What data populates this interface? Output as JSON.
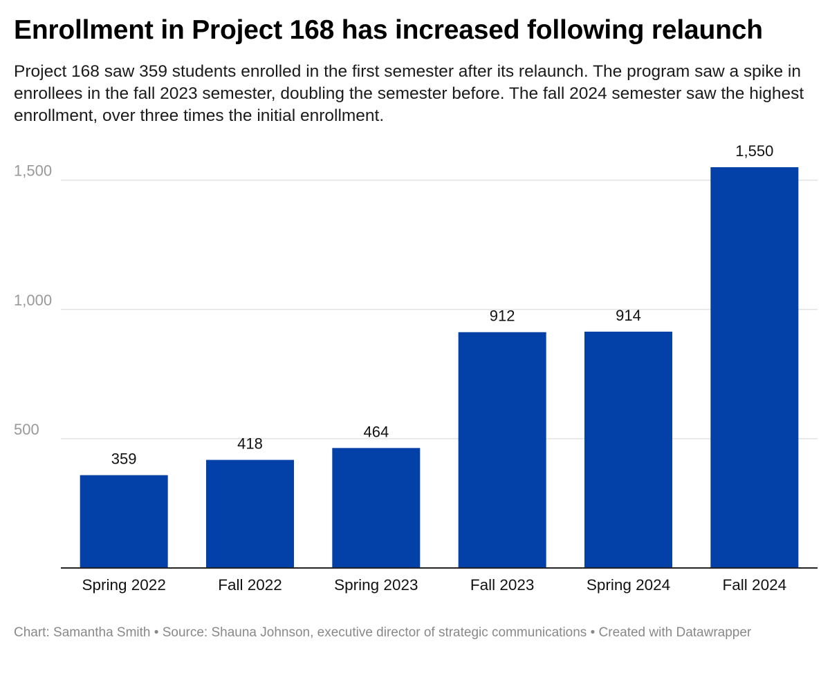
{
  "header": {
    "title": "Enrollment in Project 168 has increased following relaunch",
    "subtitle": "Project 168 saw 359 students enrolled in the first semester after its relaunch. The program saw a spike in enrollees in the fall 2023 semester, doubling the semester before. The fall 2024 semester saw the highest enrollment, over three times the initial enrollment."
  },
  "footer": {
    "credit": "Chart: Samantha Smith",
    "separator": "•",
    "source": "Source: Shauna Johnson, executive director of strategic communications",
    "created": "Created with Datawrapper"
  },
  "colors": {
    "bar": "#0340a8",
    "grid": "#e2e2e2",
    "axis": "#222222",
    "tick_label": "#999999",
    "value_label": "#111111",
    "category_label": "#111111"
  },
  "chart_data": {
    "type": "bar",
    "title": "Enrollment in Project 168 has increased following relaunch",
    "xlabel": "",
    "ylabel": "",
    "categories": [
      "Spring 2022",
      "Fall 2022",
      "Spring 2023",
      "Fall 2023",
      "Spring 2024",
      "Fall 2024"
    ],
    "values": [
      359,
      418,
      464,
      912,
      914,
      1550
    ],
    "value_labels": [
      "359",
      "418",
      "464",
      "912",
      "914",
      "1,550"
    ],
    "ylim": [
      0,
      1600
    ],
    "yticks": [
      500,
      1000,
      1500
    ],
    "ytick_labels": [
      "500",
      "1,000",
      "1,500"
    ],
    "grid": true,
    "legend": "none"
  }
}
